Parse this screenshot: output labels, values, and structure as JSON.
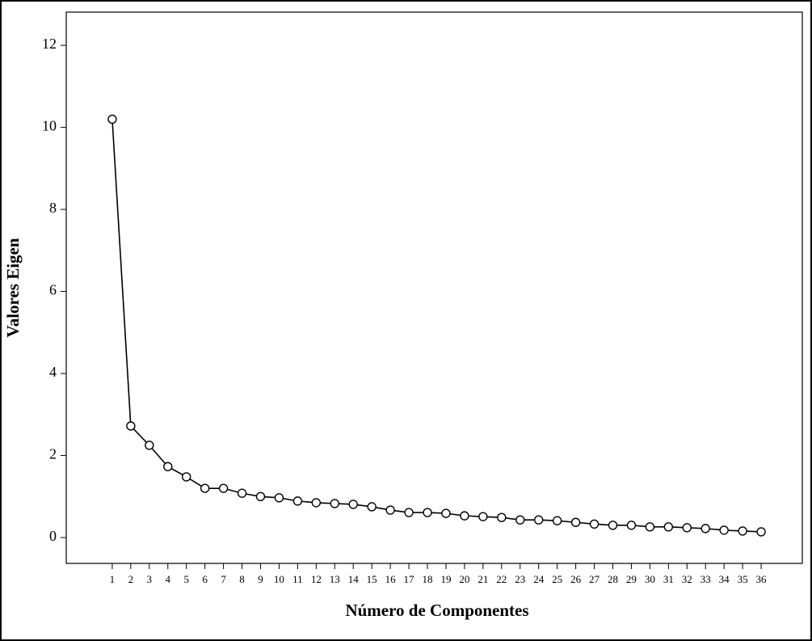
{
  "chart_data": {
    "type": "line",
    "x_label": "Número de Componentes",
    "y_label": "Valores Eigen",
    "x": [
      1,
      2,
      3,
      4,
      5,
      6,
      7,
      8,
      9,
      10,
      11,
      12,
      13,
      14,
      15,
      16,
      17,
      18,
      19,
      20,
      21,
      22,
      23,
      24,
      25,
      26,
      27,
      28,
      29,
      30,
      31,
      32,
      33,
      34,
      35,
      36
    ],
    "values": [
      10.2,
      2.72,
      2.25,
      1.73,
      1.48,
      1.2,
      1.2,
      1.08,
      1.0,
      0.97,
      0.89,
      0.85,
      0.83,
      0.81,
      0.75,
      0.67,
      0.61,
      0.61,
      0.59,
      0.53,
      0.51,
      0.49,
      0.43,
      0.43,
      0.41,
      0.37,
      0.33,
      0.3,
      0.3,
      0.26,
      0.26,
      0.24,
      0.22,
      0.18,
      0.16,
      0.14
    ],
    "color": "#000000",
    "marker": "circle",
    "xlim": [
      -1.48,
      38.22
    ],
    "xticks": [
      1,
      2,
      3,
      4,
      5,
      6,
      7,
      8,
      9,
      10,
      11,
      12,
      13,
      14,
      15,
      16,
      17,
      18,
      19,
      20,
      21,
      22,
      23,
      24,
      25,
      26,
      27,
      28,
      29,
      30,
      31,
      32,
      33,
      34,
      35,
      36
    ],
    "ylim": [
      -0.63,
      12.81
    ],
    "yticks": [
      0,
      2,
      4,
      6,
      8,
      10,
      12
    ],
    "grid": false
  }
}
